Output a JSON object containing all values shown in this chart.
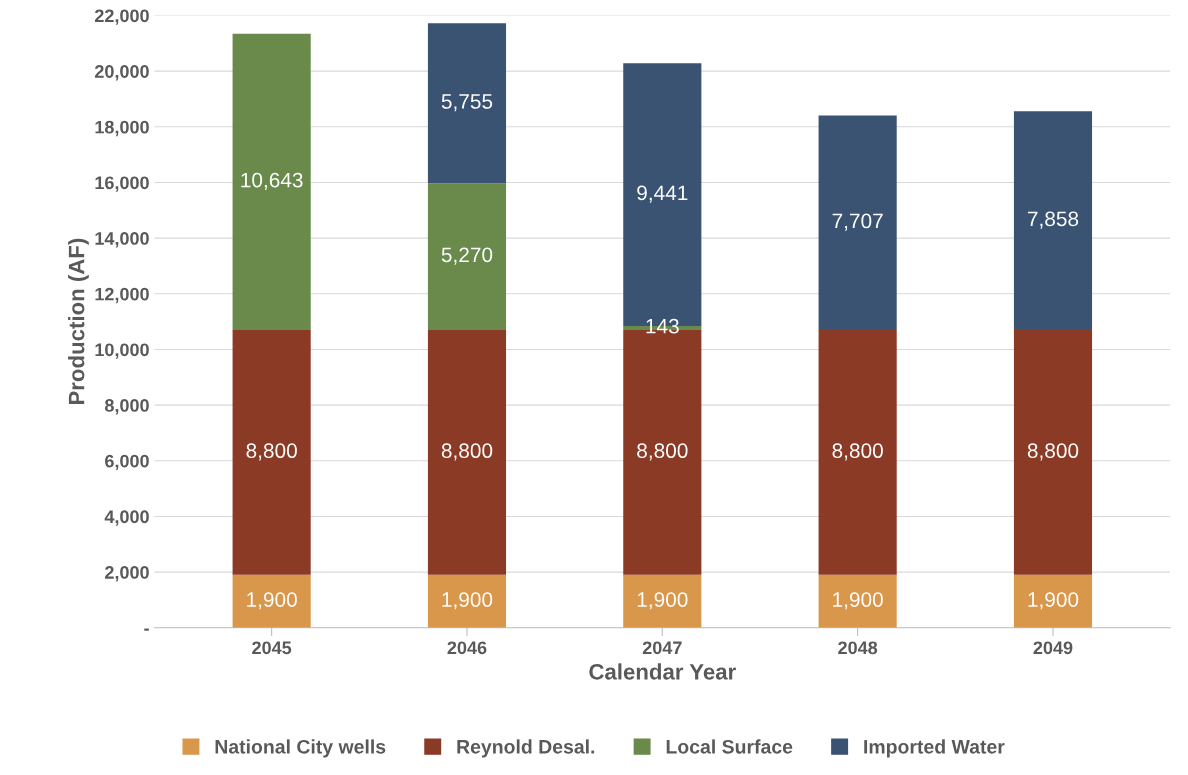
{
  "chart_data": {
    "type": "bar",
    "stacked": true,
    "xlabel": "Calendar Year",
    "ylabel": "Production (AF)",
    "categories": [
      "2045",
      "2046",
      "2047",
      "2048",
      "2049"
    ],
    "series": [
      {
        "name": "National City wells",
        "color": "#d9974c",
        "values": [
          1900,
          1900,
          1900,
          1900,
          1900
        ],
        "value_labels": [
          "1,900",
          "1,900",
          "1,900",
          "1,900",
          "1,900"
        ]
      },
      {
        "name": "Reynold Desal.",
        "color": "#8b3a25",
        "values": [
          8800,
          8800,
          8800,
          8800,
          8800
        ],
        "value_labels": [
          "8,800",
          "8,800",
          "8,800",
          "8,800",
          "8,800"
        ]
      },
      {
        "name": "Local Surface",
        "color": "#6a8a4c",
        "values": [
          10643,
          5270,
          143,
          null,
          null
        ],
        "value_labels": [
          "10,643",
          "5,270",
          "143",
          null,
          null
        ]
      },
      {
        "name": "Imported Water",
        "color": "#3a5373",
        "values": [
          null,
          5755,
          9441,
          7707,
          7858
        ],
        "value_labels": [
          null,
          "5,755",
          "9,441",
          "7,707",
          "7,858"
        ]
      }
    ],
    "ylim": [
      0,
      22000
    ],
    "yticks": [
      {
        "value": 0,
        "label": "-"
      },
      {
        "value": 2000,
        "label": "2,000"
      },
      {
        "value": 4000,
        "label": "4,000"
      },
      {
        "value": 6000,
        "label": "6,000"
      },
      {
        "value": 8000,
        "label": "8,000"
      },
      {
        "value": 10000,
        "label": "10,000"
      },
      {
        "value": 12000,
        "label": "12,000"
      },
      {
        "value": 14000,
        "label": "14,000"
      },
      {
        "value": 16000,
        "label": "16,000"
      },
      {
        "value": 18000,
        "label": "18,000"
      },
      {
        "value": 20000,
        "label": "20,000"
      },
      {
        "value": 22000,
        "label": "22,000"
      }
    ],
    "grid": "y",
    "legend": "bottom"
  }
}
